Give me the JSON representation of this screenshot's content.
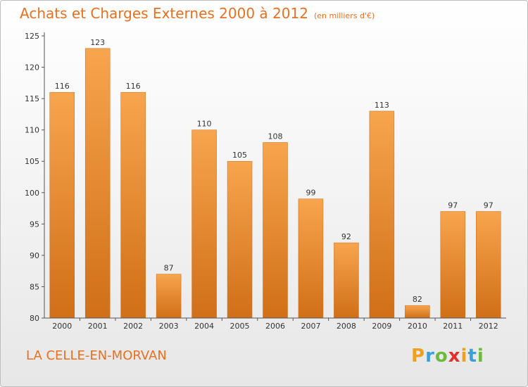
{
  "header": {
    "title": "Achats et Charges Externes 2000 à 2012",
    "subtitle": "(en milliers d'€)"
  },
  "footer": {
    "commune": "LA CELLE-EN-MORVAN",
    "logo": {
      "letters": [
        "P",
        "r",
        "o",
        "x",
        "i",
        "t",
        "i"
      ],
      "colors": [
        "#f0a020",
        "#3aa0d8",
        "#6cbb3c",
        "#e0302a",
        "#f0a020",
        "#3aa0d8",
        "#6cbb3c"
      ]
    }
  },
  "chart_data": {
    "type": "bar",
    "title": "Achats et Charges Externes 2000 à 2012",
    "subtitle": "(en milliers d'€)",
    "xlabel": "",
    "ylabel": "",
    "categories": [
      "2000",
      "2001",
      "2002",
      "2003",
      "2004",
      "2005",
      "2006",
      "2007",
      "2008",
      "2009",
      "2010",
      "2011",
      "2012"
    ],
    "values": [
      116,
      123,
      116,
      87,
      110,
      105,
      108,
      99,
      92,
      113,
      82,
      97,
      97
    ],
    "ylim": [
      80,
      125
    ],
    "yticks": [
      80,
      85,
      90,
      95,
      100,
      105,
      110,
      115,
      120,
      125
    ],
    "grid": false,
    "colors": {
      "bar_light": "#f7a54e",
      "bar_dark": "#d06f17",
      "axis": "#555555"
    }
  }
}
